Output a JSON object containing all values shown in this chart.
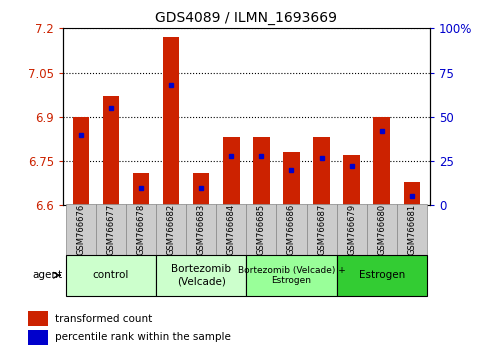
{
  "title": "GDS4089 / ILMN_1693669",
  "samples": [
    "GSM766676",
    "GSM766677",
    "GSM766678",
    "GSM766682",
    "GSM766683",
    "GSM766684",
    "GSM766685",
    "GSM766686",
    "GSM766687",
    "GSM766679",
    "GSM766680",
    "GSM766681"
  ],
  "transformed_counts": [
    6.9,
    6.97,
    6.71,
    7.17,
    6.71,
    6.83,
    6.83,
    6.78,
    6.83,
    6.77,
    6.9,
    6.68
  ],
  "percentile_ranks": [
    40,
    55,
    10,
    68,
    10,
    28,
    28,
    20,
    27,
    22,
    42,
    5
  ],
  "y_min": 6.6,
  "y_max": 7.2,
  "y_ticks": [
    6.6,
    6.75,
    6.9,
    7.05,
    7.2
  ],
  "y_right_ticks": [
    0,
    25,
    50,
    75,
    100
  ],
  "group_boundaries": [
    {
      "label": "control",
      "start": 0,
      "end": 2,
      "color": "#ccffcc"
    },
    {
      "label": "Bortezomib\n(Velcade)",
      "start": 3,
      "end": 5,
      "color": "#ccffcc"
    },
    {
      "label": "Bortezomib (Velcade) +\nEstrogen",
      "start": 6,
      "end": 8,
      "color": "#99ff99"
    },
    {
      "label": "Estrogen",
      "start": 9,
      "end": 11,
      "color": "#33cc33"
    }
  ],
  "bar_color": "#cc2200",
  "percentile_color": "#0000cc",
  "bar_width": 0.55,
  "ytick_color": "#cc2200",
  "ytick_right_color": "#0000cc",
  "sample_box_color": "#cccccc",
  "figsize": [
    4.83,
    3.54
  ],
  "dpi": 100
}
